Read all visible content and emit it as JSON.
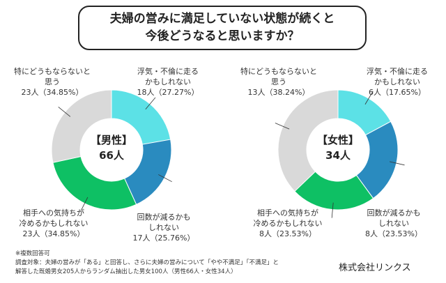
{
  "title": {
    "line1": "夫婦の営みに満足していない状態が続くと",
    "line2": "今後どうなると思いますか？"
  },
  "colors": {
    "cyan": "#5ce1e6",
    "blue": "#2a8bbf",
    "green": "#0ec064",
    "gray": "#d9d9d9"
  },
  "chart_data": [
    {
      "type": "pie",
      "center_label": {
        "line1": "【男性】",
        "line2": "66人"
      },
      "categories": [
        "浮気・不倫に走るかもしれない",
        "回数が減るかもしれない",
        "相手への気持ちが冷めるかもしれない",
        "特にどうもならないと思う"
      ],
      "values": [
        18,
        17,
        23,
        23
      ],
      "percents": [
        27.27,
        25.76,
        34.85,
        34.85
      ],
      "labels": [
        {
          "l1": "浮気・不倫に走る",
          "l2": "かもしれない",
          "l3": "18人（27.27%）"
        },
        {
          "l1": "回数が減るかも",
          "l2": "しれない",
          "l3": "17人（25.76%）"
        },
        {
          "l1": "相手への気持ちが",
          "l2": "冷めるかもしれない",
          "l3": "23人（34.85%）"
        },
        {
          "l1": "特にどうもならないと",
          "l2": "思う",
          "l3": "23人（34.85%）"
        }
      ]
    },
    {
      "type": "pie",
      "center_label": {
        "line1": "【女性】",
        "line2": "34人"
      },
      "categories": [
        "浮気・不倫に走るかもしれない",
        "回数が減るかもしれない",
        "相手への気持ちが冷めるかもしれない",
        "特にどうもならないと思う"
      ],
      "values": [
        6,
        8,
        8,
        13
      ],
      "percents": [
        17.65,
        23.53,
        23.53,
        38.24
      ],
      "labels": [
        {
          "l1": "浮気・不倫に走る",
          "l2": "かもしれない",
          "l3": "6人（17.65%）"
        },
        {
          "l1": "回数が減るかも",
          "l2": "しれない",
          "l3": "8人（23.53%）"
        },
        {
          "l1": "相手への気持ちが",
          "l2": "冷めるかもしれない",
          "l3": "8人（23.53%）"
        },
        {
          "l1": "特にどうもならないと",
          "l2": "思う",
          "l3": "13人（38.24%）"
        }
      ]
    }
  ],
  "notes": {
    "line1": "※複数回答可",
    "line2": "調査対象：夫婦の営みが「ある」と回答し、さらに夫婦の営みについて「やや不満足」「不満足」と",
    "line3": "解答した既婚男女205人からランダム抽出した男女100人（男性66人・女性34人）"
  },
  "company": "株式会社リンクス"
}
